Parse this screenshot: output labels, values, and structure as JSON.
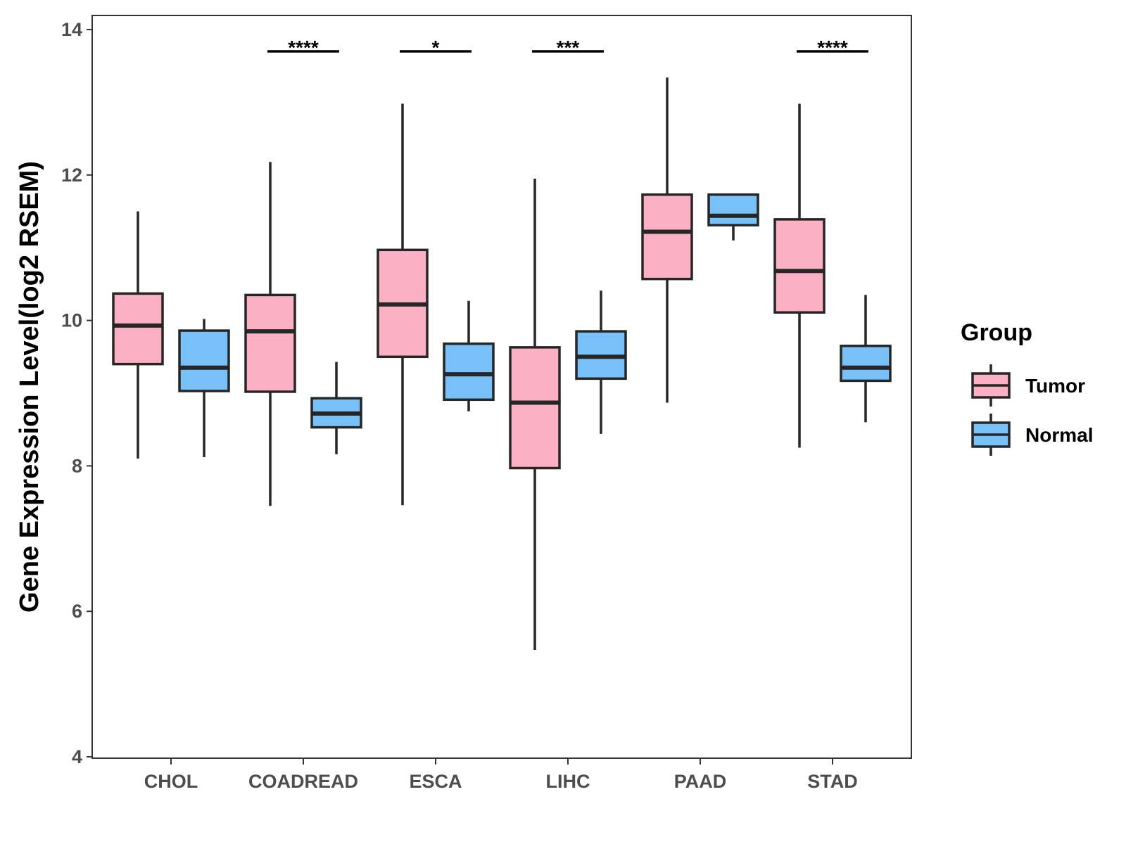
{
  "chart_data": {
    "type": "boxplot",
    "title": "",
    "xlabel": "",
    "ylabel": "Gene Expression Level(log2 RSEM)",
    "ylim": [
      4,
      14
    ],
    "yticks": [
      "4",
      "6",
      "8",
      "10",
      "12",
      "14"
    ],
    "grid": false,
    "categories": [
      "CHOL",
      "COADREAD",
      "ESCA",
      "LIHC",
      "PAAD",
      "STAD"
    ],
    "legend": {
      "title": "Group",
      "placement": "right",
      "items": [
        {
          "label": "Tumor",
          "color": "#fbb1c3"
        },
        {
          "label": "Normal",
          "color": "#78c1f8"
        }
      ]
    },
    "series": [
      {
        "name": "Tumor",
        "color": "#fbb1c3",
        "boxes": [
          {
            "category": "CHOL",
            "min": 8.1,
            "q1": 9.4,
            "median": 9.93,
            "q3": 10.37,
            "max": 11.5
          },
          {
            "category": "COADREAD",
            "min": 7.45,
            "q1": 9.02,
            "median": 9.85,
            "q3": 10.35,
            "max": 12.18
          },
          {
            "category": "ESCA",
            "min": 7.46,
            "q1": 9.5,
            "median": 10.22,
            "q3": 10.97,
            "max": 12.98
          },
          {
            "category": "LIHC",
            "min": 5.47,
            "q1": 7.97,
            "median": 8.87,
            "q3": 9.63,
            "max": 11.95
          },
          {
            "category": "PAAD",
            "min": 8.87,
            "q1": 10.57,
            "median": 11.22,
            "q3": 11.73,
            "max": 13.34
          },
          {
            "category": "STAD",
            "min": 8.25,
            "q1": 10.11,
            "median": 10.68,
            "q3": 11.39,
            "max": 12.98
          }
        ]
      },
      {
        "name": "Normal",
        "color": "#78c1f8",
        "boxes": [
          {
            "category": "CHOL",
            "min": 8.12,
            "q1": 9.03,
            "median": 9.35,
            "q3": 9.86,
            "max": 10.02
          },
          {
            "category": "COADREAD",
            "min": 8.16,
            "q1": 8.53,
            "median": 8.72,
            "q3": 8.93,
            "max": 9.43
          },
          {
            "category": "ESCA",
            "min": 8.75,
            "q1": 8.91,
            "median": 9.26,
            "q3": 9.68,
            "max": 10.27
          },
          {
            "category": "LIHC",
            "min": 8.44,
            "q1": 9.2,
            "median": 9.5,
            "q3": 9.85,
            "max": 10.41
          },
          {
            "category": "PAAD",
            "min": 11.1,
            "q1": 11.31,
            "median": 11.44,
            "q3": 11.73,
            "max": 11.73
          },
          {
            "category": "STAD",
            "min": 8.6,
            "q1": 9.17,
            "median": 9.35,
            "q3": 9.65,
            "max": 10.35
          }
        ]
      }
    ],
    "significance": [
      {
        "category": "COADREAD",
        "label": "****",
        "y": 13.7
      },
      {
        "category": "ESCA",
        "label": "*",
        "y": 13.7
      },
      {
        "category": "LIHC",
        "label": "***",
        "y": 13.7
      },
      {
        "category": "STAD",
        "label": "****",
        "y": 13.7
      }
    ]
  }
}
